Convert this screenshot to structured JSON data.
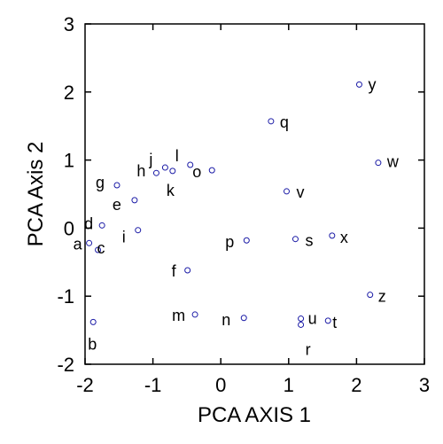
{
  "chart_data": {
    "type": "scatter",
    "xlabel": "PCA AXIS 1",
    "ylabel": "PCA Axis 2",
    "xlim": [
      -2,
      3
    ],
    "ylim": [
      -2,
      3
    ],
    "x_ticks": [
      -2,
      -1,
      0,
      1,
      2,
      3
    ],
    "y_ticks": [
      -2,
      -1,
      0,
      1,
      2,
      3
    ],
    "x_tick_labels": [
      "-2",
      "-1",
      "0",
      "1",
      "2",
      "3"
    ],
    "y_tick_labels": [
      "-2",
      "-1",
      "0",
      "1",
      "2",
      "3"
    ],
    "marker_color": "#1a1aa6",
    "grid": false,
    "points": [
      {
        "label": "a",
        "x": -1.94,
        "y": -0.22
      },
      {
        "label": "b",
        "x": -1.88,
        "y": -1.38
      },
      {
        "label": "c",
        "x": -1.81,
        "y": -0.32
      },
      {
        "label": "d",
        "x": -1.75,
        "y": 0.04
      },
      {
        "label": "e",
        "x": -1.27,
        "y": 0.41
      },
      {
        "label": "f",
        "x": -0.49,
        "y": -0.62
      },
      {
        "label": "g",
        "x": -1.53,
        "y": 0.63
      },
      {
        "label": "h",
        "x": -0.95,
        "y": 0.81
      },
      {
        "label": "i",
        "x": -1.22,
        "y": -0.03
      },
      {
        "label": "j",
        "x": -0.82,
        "y": 0.89
      },
      {
        "label": "k",
        "x": -0.71,
        "y": 0.84
      },
      {
        "label": "l",
        "x": -0.45,
        "y": 0.93
      },
      {
        "label": "m",
        "x": -0.38,
        "y": -1.27
      },
      {
        "label": "n",
        "x": 0.34,
        "y": -1.32
      },
      {
        "label": "o",
        "x": -0.13,
        "y": 0.85
      },
      {
        "label": "p",
        "x": 0.38,
        "y": -0.18
      },
      {
        "label": "q",
        "x": 0.74,
        "y": 1.57
      },
      {
        "label": "r",
        "x": 1.18,
        "y": -1.42
      },
      {
        "label": "s",
        "x": 1.1,
        "y": -0.16
      },
      {
        "label": "t",
        "x": 1.58,
        "y": -1.36
      },
      {
        "label": "u",
        "x": 1.18,
        "y": -1.33
      },
      {
        "label": "v",
        "x": 0.97,
        "y": 0.54
      },
      {
        "label": "w",
        "x": 2.32,
        "y": 0.96
      },
      {
        "label": "x",
        "x": 1.64,
        "y": -0.11
      },
      {
        "label": "y",
        "x": 2.04,
        "y": 2.11
      },
      {
        "label": "z",
        "x": 2.2,
        "y": -0.98
      }
    ]
  }
}
